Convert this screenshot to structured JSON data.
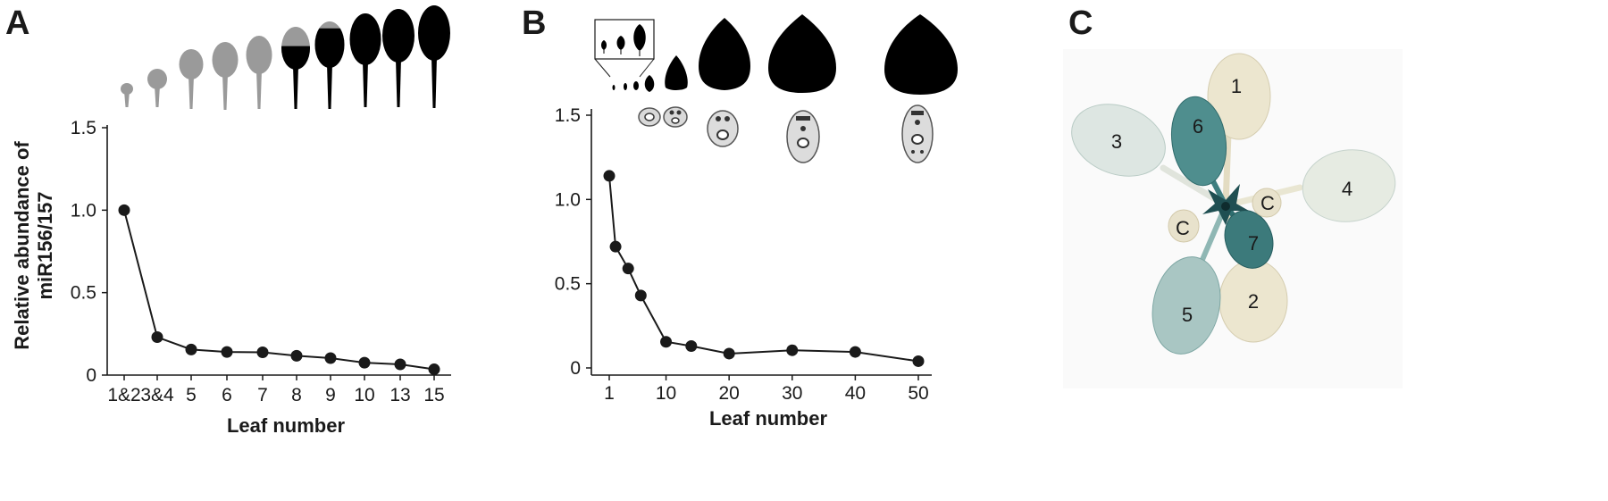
{
  "panels": {
    "a": {
      "letter": "A"
    },
    "b": {
      "letter": "B"
    },
    "c": {
      "letter": "C"
    }
  },
  "chart_data": [
    {
      "panel": "A",
      "type": "line",
      "categories": [
        "1&2",
        "3&4",
        "5",
        "6",
        "7",
        "8",
        "9",
        "10",
        "13",
        "15"
      ],
      "values": [
        1.0,
        0.23,
        0.155,
        0.14,
        0.138,
        0.117,
        0.103,
        0.075,
        0.065,
        0.035
      ],
      "xlabel": "Leaf number",
      "ylabel": [
        "Relative abundance of",
        "miR156/157"
      ],
      "ylim": [
        0,
        1.5
      ],
      "yticks": [
        "0",
        "0.5",
        "1.0",
        "1.5"
      ],
      "ytick_values": [
        0,
        0.5,
        1.0,
        1.5
      ],
      "grid": false,
      "legend": "none",
      "line_color": "#1a1a1a",
      "leaf_colors": [
        "#9a9a9a",
        "#9a9a9a",
        "#9a9a9a",
        "#9a9a9a",
        "#9a9a9a",
        "mixed",
        "mixed",
        "#000000",
        "#000000",
        "#000000"
      ]
    },
    {
      "panel": "B",
      "type": "line",
      "x": [
        1,
        2,
        4,
        6,
        10,
        14,
        20,
        30,
        40,
        50
      ],
      "values": [
        1.14,
        0.72,
        0.59,
        0.43,
        0.155,
        0.13,
        0.085,
        0.105,
        0.095,
        0.04
      ],
      "xlabel": "Leaf number",
      "ylabel": "",
      "xlim": [
        1,
        50
      ],
      "xticks": [
        "1",
        "10",
        "20",
        "30",
        "40",
        "50"
      ],
      "xtick_values": [
        1,
        10,
        20,
        30,
        40,
        50
      ],
      "ylim": [
        0,
        1.5
      ],
      "yticks": [
        "0",
        "0.5",
        "1.0",
        "1.5"
      ],
      "ytick_values": [
        0,
        0.5,
        1.0,
        1.5
      ],
      "grid": false,
      "legend": "none",
      "line_color": "#1a1a1a"
    }
  ],
  "rosette": {
    "leaves": [
      {
        "label": "1",
        "stain": "none",
        "color": "#ece6cf"
      },
      {
        "label": "2",
        "stain": "none",
        "color": "#ece6cf"
      },
      {
        "label": "3",
        "stain": "light",
        "color": "#dde6e2"
      },
      {
        "label": "4",
        "stain": "light",
        "color": "#e6ebe2"
      },
      {
        "label": "5",
        "stain": "medium",
        "color": "#a9c6c3"
      },
      {
        "label": "6",
        "stain": "strong",
        "color": "#4f8e8e"
      },
      {
        "label": "7",
        "stain": "strong",
        "color": "#3c7a7b"
      },
      {
        "label": "C",
        "stain": "none",
        "color": "#e8e2cc"
      },
      {
        "label": "C",
        "stain": "none",
        "color": "#e8e2cc"
      }
    ]
  }
}
